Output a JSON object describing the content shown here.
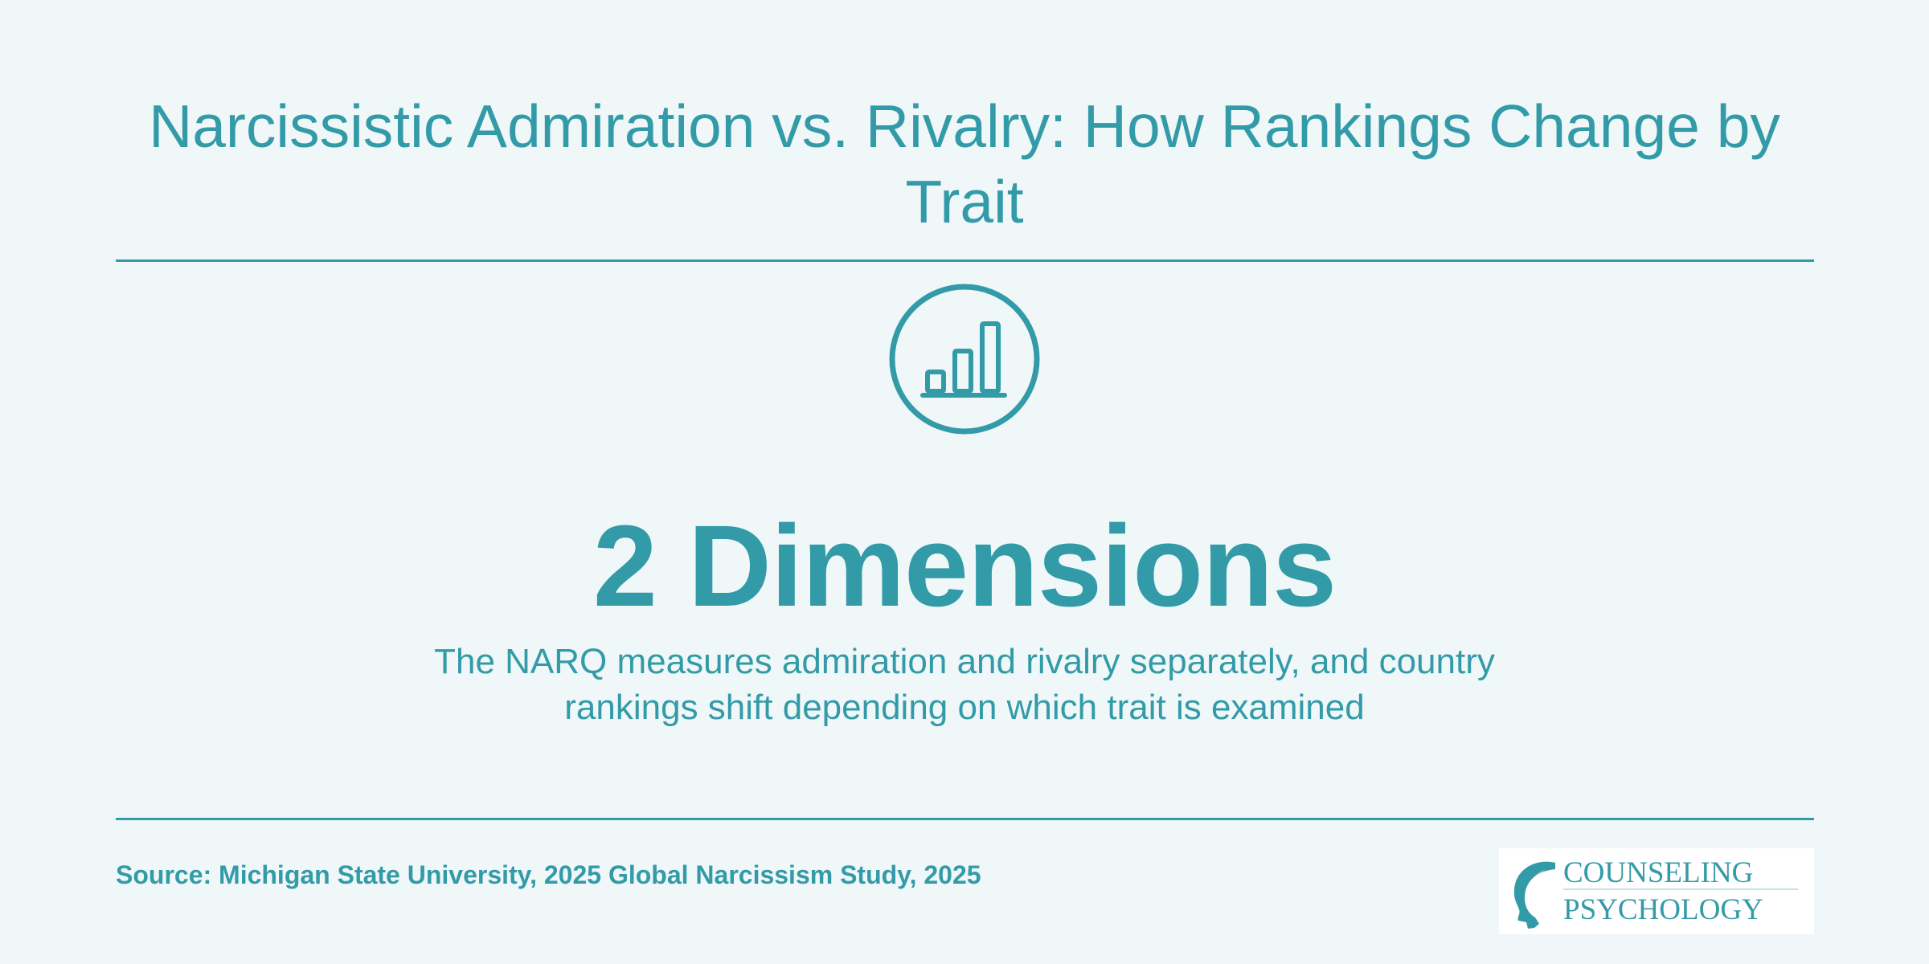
{
  "title": "Narcissistic Admiration vs. Rivalry: How Rankings Change by Trait",
  "stat": {
    "icon": "bar-chart-icon",
    "value": "2 Dimensions",
    "description": "The NARQ measures admiration and rivalry separately, and country rankings shift depending on which trait is examined"
  },
  "footer": {
    "source": "Source: Michigan State University, 2025 Global Narcissism Study, 2025"
  },
  "logo": {
    "line1": "COUNSELING",
    "line2": "PSYCHOLOGY"
  },
  "colors": {
    "background": "#eff7f8",
    "accent": "#339ba8"
  }
}
